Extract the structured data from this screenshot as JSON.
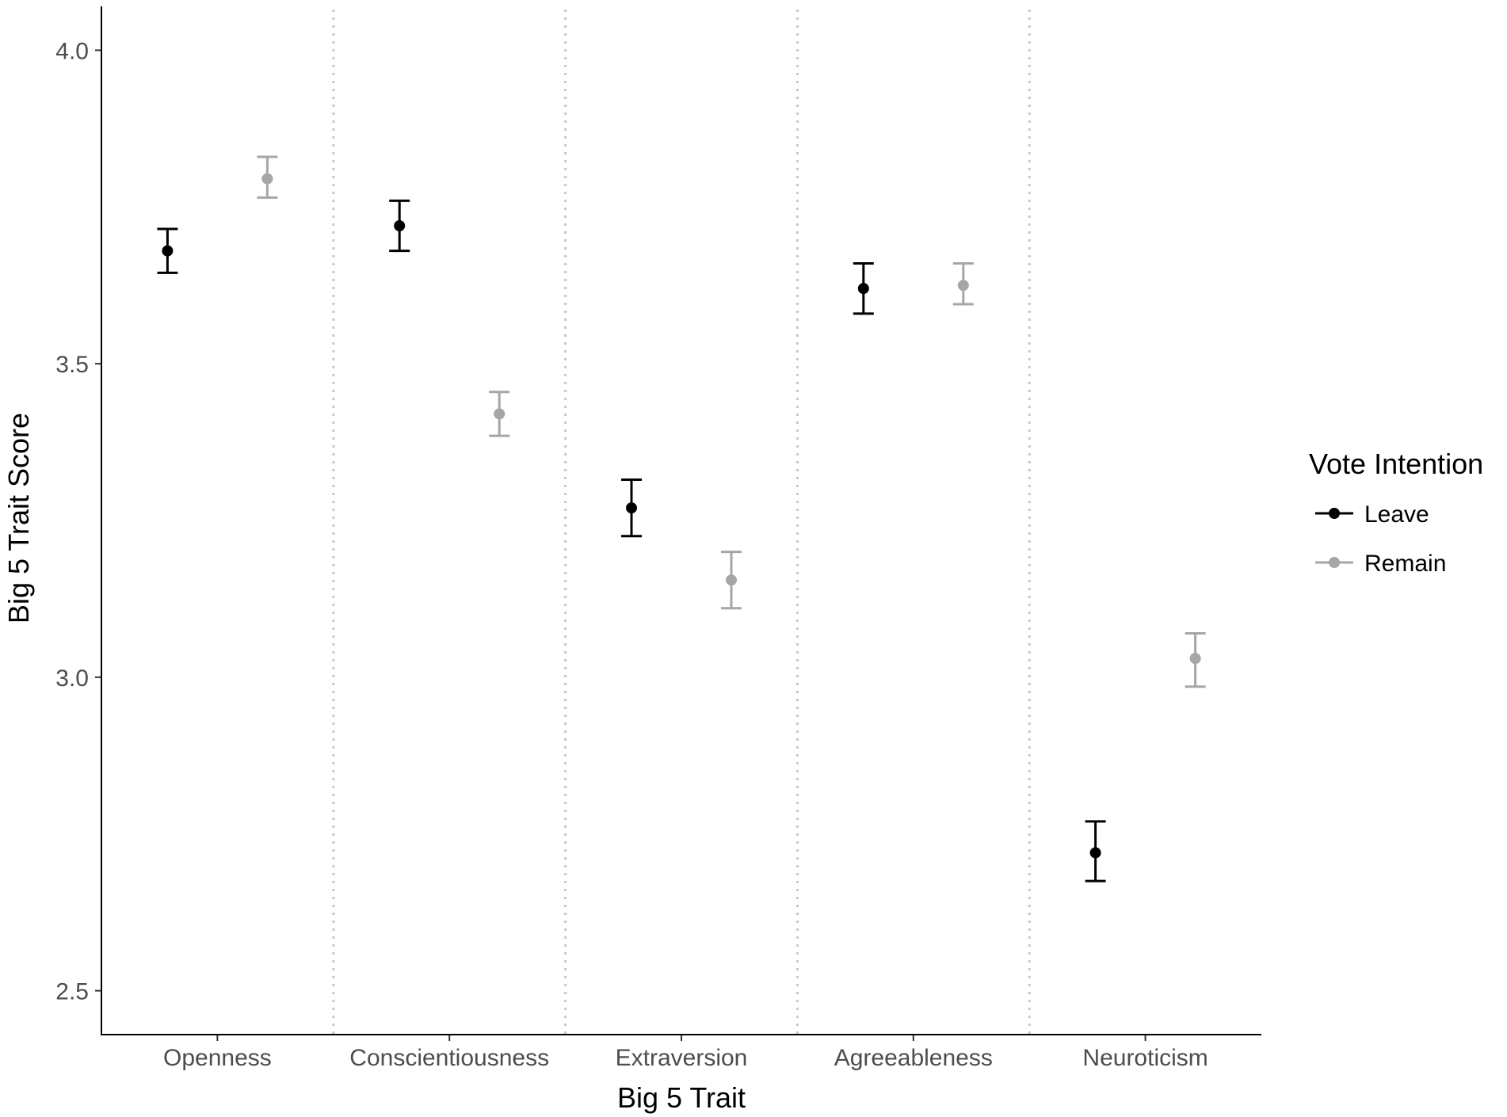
{
  "chart_data": {
    "type": "scatter",
    "xlabel": "Big 5 Trait",
    "ylabel": "Big 5 Trait Score",
    "categories": [
      "Openness",
      "Conscientiousness",
      "Extraversion",
      "Agreeableness",
      "Neuroticism"
    ],
    "ylim": [
      2.43,
      4.07
    ],
    "yticks": [
      "2.5",
      "3.0",
      "3.5",
      "4.0"
    ],
    "grid": "dotted vertical separators between categories",
    "legend": {
      "title": "Vote Intention",
      "position": "right"
    },
    "series": [
      {
        "name": "Leave",
        "color": "#000000",
        "values": [
          3.68,
          3.72,
          3.27,
          3.62,
          2.72
        ],
        "lower": [
          3.645,
          3.68,
          3.225,
          3.58,
          2.675
        ],
        "upper": [
          3.715,
          3.76,
          3.315,
          3.66,
          2.77
        ]
      },
      {
        "name": "Remain",
        "color": "#a6a6a6",
        "values": [
          3.795,
          3.42,
          3.155,
          3.625,
          3.03
        ],
        "lower": [
          3.765,
          3.385,
          3.11,
          3.595,
          2.985
        ],
        "upper": [
          3.83,
          3.455,
          3.2,
          3.66,
          3.07
        ]
      }
    ]
  }
}
